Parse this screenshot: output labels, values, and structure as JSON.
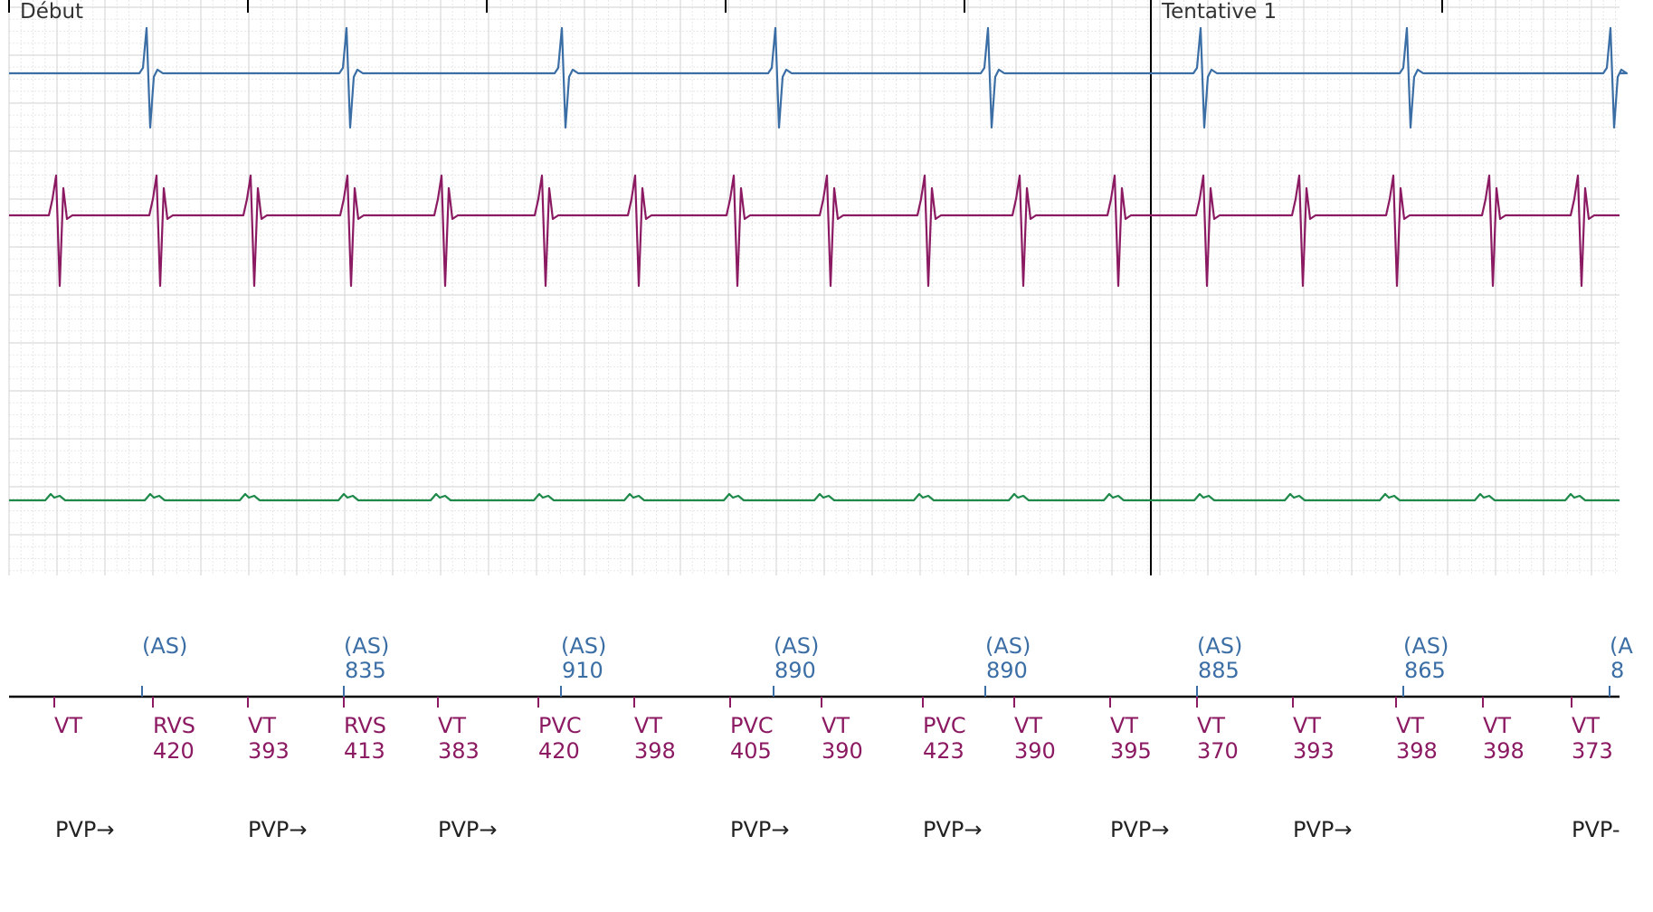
{
  "segments": {
    "start": "Début",
    "attempt": "Tentative 1"
  },
  "colors": {
    "atrial": "#3b6ea5",
    "ventricular": "#8b1a62",
    "shock": "#1e8a4a",
    "annotation": "#222222",
    "grid": "#d2d2d2",
    "axis": "#000000"
  },
  "channels": [
    {
      "name": "atrial-egm",
      "color": "atrial"
    },
    {
      "name": "ventricular-egm",
      "color": "ventricular"
    },
    {
      "name": "shock-egm",
      "color": "shock"
    }
  ],
  "atrial_markers": [
    {
      "label": "(AS)",
      "value": ""
    },
    {
      "label": "(AS)",
      "value": "835"
    },
    {
      "label": "(AS)",
      "value": "910"
    },
    {
      "label": "(AS)",
      "value": "890"
    },
    {
      "label": "(AS)",
      "value": "890"
    },
    {
      "label": "(AS)",
      "value": "885"
    },
    {
      "label": "(AS)",
      "value": "865"
    },
    {
      "label": "(A",
      "value": "8"
    }
  ],
  "ventricular_markers": [
    {
      "label": "VT",
      "value": ""
    },
    {
      "label": "RVS",
      "value": "420"
    },
    {
      "label": "VT",
      "value": "393"
    },
    {
      "label": "RVS",
      "value": "413"
    },
    {
      "label": "VT",
      "value": "383"
    },
    {
      "label": "PVC",
      "value": "420"
    },
    {
      "label": "VT",
      "value": "398"
    },
    {
      "label": "PVC",
      "value": "405"
    },
    {
      "label": "VT",
      "value": "390"
    },
    {
      "label": "PVC",
      "value": "423"
    },
    {
      "label": "VT",
      "value": "390"
    },
    {
      "label": "VT",
      "value": "395"
    },
    {
      "label": "VT",
      "value": "370"
    },
    {
      "label": "VT",
      "value": "393"
    },
    {
      "label": "VT",
      "value": "398"
    },
    {
      "label": "VT",
      "value": "398"
    },
    {
      "label": "VT",
      "value": "373"
    }
  ],
  "pvp_annotations": [
    "PVP→",
    "PVP→",
    "PVP→",
    "PVP→",
    "PVP→",
    "PVP→",
    "PVP→",
    "PVP-"
  ]
}
